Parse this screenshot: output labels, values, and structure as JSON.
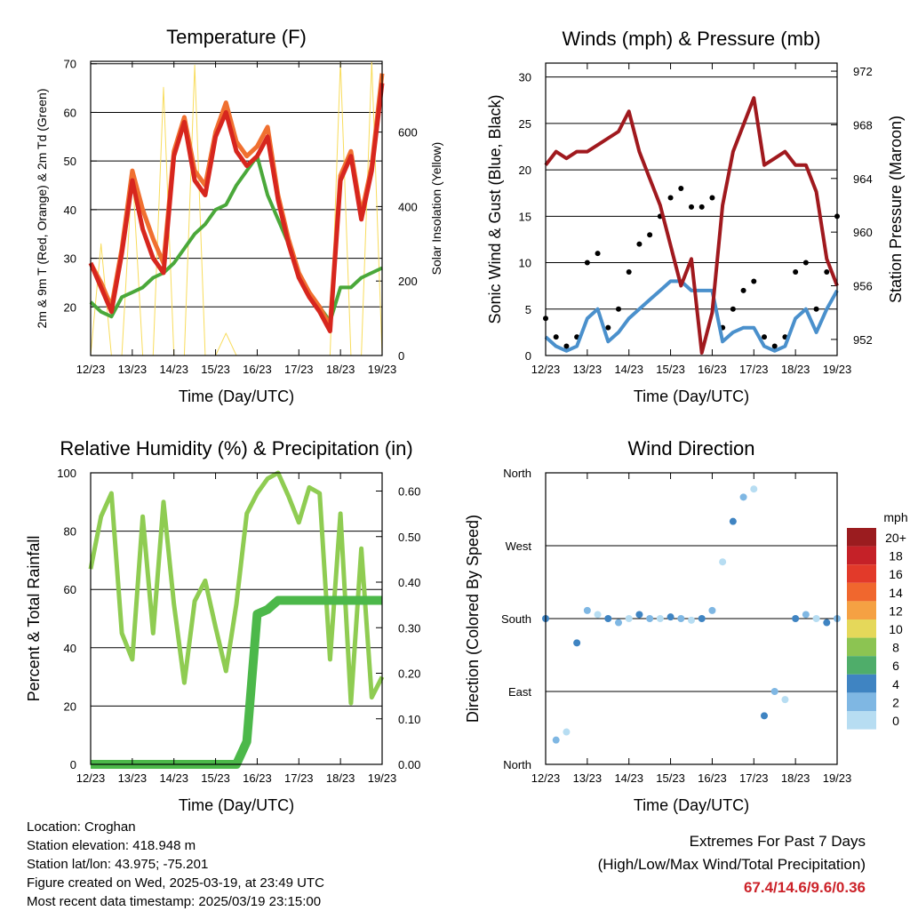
{
  "x_ticks": [
    "12/23",
    "13/23",
    "14/23",
    "15/23",
    "16/23",
    "17/23",
    "18/23",
    "19/23"
  ],
  "info": {
    "location": "Location: Croghan",
    "elevation": "Station elevation: 418.948 m",
    "latlon": "Station lat/lon: 43.975; -75.201",
    "created": "Figure created on Wed, 2025-03-19, at 23:49 UTC",
    "recent": "Most recent data timestamp: 2025/03/19 23:15:00"
  },
  "extremes": {
    "title": "Extremes For Past 7 Days",
    "subtitle": "(High/Low/Max Wind/Total Precipitation)",
    "values": "67.4/14.6/9.6/0.36"
  },
  "chart_data": [
    {
      "type": "line",
      "title": "Temperature (F)",
      "xlabel": "Time (Day/UTC)",
      "ylabel": "2m & 9m T (Red, Orange) & 2m Td (Green)",
      "y2label": "Solar Insolation (Yellow)",
      "ylim": [
        10,
        70.5
      ],
      "y2lim": [
        0,
        790
      ],
      "yticks": [
        "20",
        "30",
        "40",
        "50",
        "60",
        "70"
      ],
      "y2ticks": [
        "0",
        "200",
        "400",
        "600"
      ],
      "x": [
        12,
        12.25,
        12.5,
        12.75,
        13,
        13.25,
        13.5,
        13.75,
        14,
        14.25,
        14.5,
        14.75,
        15,
        15.25,
        15.5,
        15.75,
        16,
        16.25,
        16.5,
        16.75,
        17,
        17.25,
        17.5,
        17.75,
        18,
        18.25,
        18.5,
        18.75,
        19
      ],
      "series": [
        {
          "color": "#d7261e",
          "values": [
            29,
            24,
            19,
            31,
            46,
            36,
            30,
            27,
            51,
            58,
            46,
            43,
            55,
            60,
            52,
            49,
            51,
            55,
            42,
            33,
            26,
            22,
            19,
            15,
            46,
            51,
            38,
            48,
            66
          ]
        },
        {
          "color": "#f07030",
          "values": [
            29,
            25,
            20,
            32,
            48,
            40,
            34,
            29,
            52,
            59,
            48,
            45,
            56,
            62,
            54,
            51,
            53,
            57,
            43,
            34,
            27,
            23,
            20,
            16,
            47,
            52,
            39,
            49,
            68
          ]
        },
        {
          "color": "#4aa83a",
          "values": [
            21,
            19,
            18,
            22,
            23,
            24,
            26,
            27,
            29,
            32,
            35,
            37,
            40,
            41,
            45,
            48,
            51,
            43,
            38,
            33,
            26,
            23,
            20,
            17,
            24,
            24,
            26,
            27,
            28
          ]
        },
        {
          "color": "#f8dc5c",
          "axis": "y2",
          "values": [
            0,
            300,
            0,
            0,
            500,
            0,
            0,
            720,
            0,
            0,
            780,
            0,
            0,
            60,
            0,
            0,
            0,
            0,
            0,
            0,
            0,
            0,
            0,
            0,
            790,
            0,
            0,
            790,
            0
          ]
        }
      ]
    },
    {
      "type": "scatter",
      "title": "Winds (mph) & Pressure (mb)",
      "xlabel": "Time (Day/UTC)",
      "ylabel": "Sonic Wind & Gust (Blue, Black)",
      "y2label": "Station Pressure (Maroon)",
      "ylim": [
        0,
        31.5
      ],
      "y2lim": [
        950.8,
        972.6
      ],
      "yticks": [
        "0",
        "5",
        "10",
        "15",
        "20",
        "25",
        "30"
      ],
      "y2ticks": [
        "952",
        "956",
        "960",
        "964",
        "968",
        "972"
      ],
      "x": [
        12,
        12.25,
        12.5,
        12.75,
        13,
        13.25,
        13.5,
        13.75,
        14,
        14.25,
        14.5,
        14.75,
        15,
        15.25,
        15.5,
        15.75,
        16,
        16.25,
        16.5,
        16.75,
        17,
        17.25,
        17.5,
        17.75,
        18,
        18.25,
        18.5,
        18.75,
        19
      ],
      "series": [
        {
          "color": "#000000",
          "values": [
            4,
            2,
            1,
            2,
            10,
            11,
            3,
            5,
            9,
            12,
            13,
            15,
            17,
            18,
            16,
            16,
            17,
            3,
            5,
            7,
            8,
            2,
            1,
            2,
            9,
            10,
            5,
            9,
            15
          ]
        },
        {
          "color": "#4a90cc",
          "values": [
            2,
            1,
            0.5,
            1,
            4,
            5,
            1.5,
            2.5,
            4,
            5,
            6,
            7,
            8,
            8,
            7,
            7,
            7,
            1.5,
            2.5,
            3,
            3,
            1,
            0.5,
            1,
            4,
            5,
            2.5,
            5,
            7
          ]
        },
        {
          "color": "#a0191e",
          "axis": "y2",
          "values": [
            965,
            966,
            965.5,
            966,
            966,
            966.5,
            967,
            967.5,
            969,
            966,
            964,
            962,
            959,
            956,
            958,
            951,
            954,
            962,
            966,
            968,
            970,
            965,
            965.5,
            966,
            965,
            965,
            963,
            958,
            956
          ]
        }
      ]
    },
    {
      "type": "line",
      "title": "Relative Humidity (%) & Precipitation (in)",
      "xlabel": "Time (Day/UTC)",
      "ylabel": "Percent & Total Rainfall",
      "ylim": [
        0,
        100
      ],
      "y2lim": [
        0,
        0.64
      ],
      "yticks": [
        "0",
        "20",
        "40",
        "60",
        "80",
        "100"
      ],
      "y2ticks": [
        "0.00",
        "0.10",
        "0.20",
        "0.30",
        "0.40",
        "0.50",
        "0.60"
      ],
      "x": [
        12,
        12.25,
        12.5,
        12.75,
        13,
        13.25,
        13.5,
        13.75,
        14,
        14.25,
        14.5,
        14.75,
        15,
        15.25,
        15.5,
        15.75,
        16,
        16.25,
        16.5,
        16.75,
        17,
        17.25,
        17.5,
        17.75,
        18,
        18.25,
        18.5,
        18.75,
        19
      ],
      "series": [
        {
          "color": "#8fcc52",
          "values": [
            67,
            85,
            93,
            45,
            36,
            85,
            45,
            90,
            55,
            28,
            56,
            63,
            47,
            32,
            55,
            86,
            93,
            98,
            100,
            92,
            83,
            95,
            93,
            36,
            86,
            21,
            74,
            23,
            30
          ]
        },
        {
          "color": "#4cb84a",
          "axis": "y2",
          "values": [
            0,
            0,
            0,
            0,
            0,
            0,
            0,
            0,
            0,
            0,
            0,
            0,
            0,
            0,
            0,
            0.05,
            0.33,
            0.34,
            0.36,
            0.36,
            0.36,
            0.36,
            0.36,
            0.36,
            0.36,
            0.36,
            0.36,
            0.36,
            0.36
          ]
        }
      ]
    },
    {
      "type": "scatter",
      "title": "Wind Direction",
      "xlabel": "Time (Day/UTC)",
      "ylabel": "Direction (Colored By Speed)",
      "yticks": [
        "North",
        "East",
        "South",
        "West",
        "North"
      ],
      "ylim": [
        0,
        360
      ],
      "x": [
        12,
        12.25,
        12.5,
        12.75,
        13,
        13.25,
        13.5,
        13.75,
        14,
        14.25,
        14.5,
        14.75,
        15,
        15.25,
        15.5,
        15.75,
        16,
        16.25,
        16.5,
        16.75,
        17,
        17.25,
        17.5,
        17.75,
        18,
        18.25,
        18.5,
        18.75,
        19
      ],
      "series": [
        {
          "values": [
            180,
            30,
            40,
            150,
            190,
            185,
            180,
            175,
            180,
            185,
            180,
            180,
            182,
            180,
            178,
            180,
            190,
            250,
            300,
            330,
            340,
            60,
            90,
            80,
            180,
            185,
            180,
            175,
            180
          ]
        }
      ],
      "colorbar": {
        "title": "mph",
        "labels": [
          "20+",
          "18",
          "16",
          "14",
          "12",
          "10",
          "8",
          "6",
          "4",
          "2",
          "0"
        ],
        "colors": [
          "#9b1c1f",
          "#c52128",
          "#e23a2a",
          "#f0672e",
          "#f5a143",
          "#e5d85a",
          "#8cc452",
          "#4fad6a",
          "#3f84c2",
          "#7fb7e3",
          "#b7ddf2"
        ]
      }
    }
  ]
}
